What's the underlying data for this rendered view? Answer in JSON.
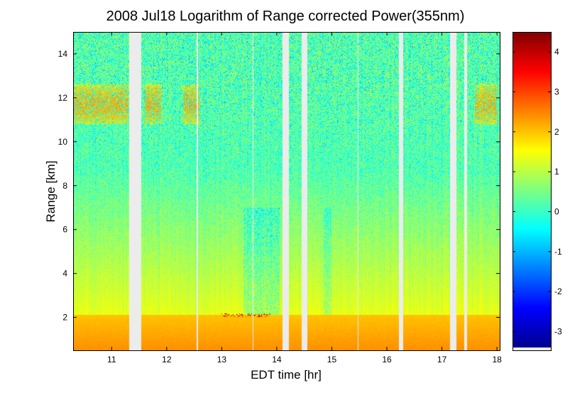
{
  "chart_data": {
    "type": "heatmap",
    "title": "2008 Jul18  Logarithm of Range corrected Power(355nm)",
    "xlabel": "EDT time [hr]",
    "ylabel": "Range [km]",
    "xlim": [
      10.3,
      18.05
    ],
    "ylim": [
      0.5,
      15
    ],
    "xticks": [
      "11",
      "12",
      "13",
      "14",
      "15",
      "16",
      "17",
      "18"
    ],
    "yticks": [
      "2",
      "4",
      "6",
      "8",
      "10",
      "12",
      "14"
    ],
    "colorbar": {
      "colormap": "jet",
      "range": [
        -3.4,
        4.5
      ],
      "ticks": [
        "4",
        "3",
        "2",
        "1",
        "0",
        "-1",
        "-2",
        "-3"
      ]
    },
    "missing_data_intervals_hr": [
      [
        11.32,
        11.54
      ],
      [
        12.55,
        12.57
      ],
      [
        13.56,
        13.58
      ],
      [
        14.11,
        14.22
      ],
      [
        14.45,
        14.55
      ],
      [
        15.47,
        15.49
      ],
      [
        16.22,
        16.3
      ],
      [
        17.15,
        17.26
      ],
      [
        17.4,
        17.46
      ]
    ],
    "boundary_layer_top_km": 2.1,
    "cloud_layer_range_km": [
      10.8,
      12.6
    ],
    "cloud_time_intervals_hr": [
      [
        10.3,
        11.3
      ],
      [
        11.6,
        11.9
      ],
      [
        12.3,
        12.6
      ],
      [
        17.6,
        18.0
      ]
    ],
    "boundary_layer_top_hr": 13.0,
    "colors": {
      "missing": "#ececec",
      "background": "#ffffff"
    }
  }
}
